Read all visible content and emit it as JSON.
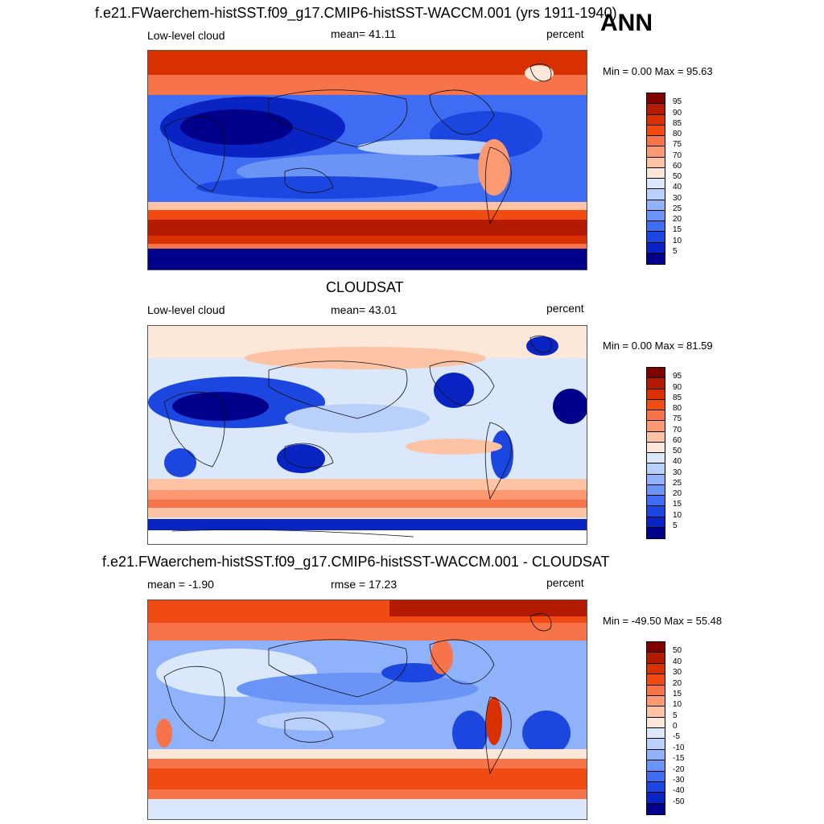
{
  "season": "ANN",
  "panels": [
    {
      "id": "model",
      "title": "f.e21.FWaerchem-histSST.f09_g17.CMIP6-histSST-WACCM.001 (yrs 1911-1940)",
      "left_label": "Low-level cloud",
      "center_label": "mean=  41.11",
      "right_label": "percent",
      "minmax": "Min =   0.00 Max =  95.63",
      "ticks": [
        "95",
        "90",
        "85",
        "80",
        "75",
        "70",
        "60",
        "50",
        "40",
        "30",
        "25",
        "20",
        "15",
        "10",
        "5"
      ],
      "colors": [
        "#7f0000",
        "#b31b00",
        "#d93000",
        "#ef4b12",
        "#f7734a",
        "#fb9a72",
        "#fdc3a4",
        "#fde7d8",
        "#dbe8fb",
        "#b9d0fb",
        "#8fb2fa",
        "#6a95f7",
        "#3e6cf2",
        "#1c46e0",
        "#0a24c4",
        "#00008a"
      ]
    },
    {
      "id": "obs",
      "title": "CLOUDSAT",
      "left_label": "Low-level cloud",
      "center_label": "mean=  43.01",
      "right_label": "percent",
      "minmax": "Min =   0.00 Max =  81.59",
      "ticks": [
        "95",
        "90",
        "85",
        "80",
        "75",
        "70",
        "60",
        "50",
        "40",
        "30",
        "25",
        "20",
        "15",
        "10",
        "5"
      ],
      "colors": [
        "#7f0000",
        "#b31b00",
        "#d93000",
        "#ef4b12",
        "#f7734a",
        "#fb9a72",
        "#fdc3a4",
        "#fde7d8",
        "#dbe8fb",
        "#b9d0fb",
        "#8fb2fa",
        "#6a95f7",
        "#3e6cf2",
        "#1c46e0",
        "#0a24c4",
        "#00008a"
      ]
    },
    {
      "id": "diff",
      "title": "f.e21.FWaerchem-histSST.f09_g17.CMIP6-histSST-WACCM.001 - CLOUDSAT",
      "left_label": "mean =  -1.90",
      "center_label": "rmse =  17.23",
      "right_label": "percent",
      "minmax": "Min = -49.50 Max =  55.48",
      "ticks": [
        "50",
        "40",
        "30",
        "20",
        "15",
        "10",
        "5",
        "0",
        "-5",
        "-10",
        "-15",
        "-20",
        "-30",
        "-40",
        "-50"
      ],
      "colors": [
        "#7f0000",
        "#b31b00",
        "#d93000",
        "#ef4b12",
        "#f7734a",
        "#fb9a72",
        "#fdc3a4",
        "#fde7d8",
        "#dbe8fb",
        "#b9d0fb",
        "#8fb2fa",
        "#6a95f7",
        "#3e6cf2",
        "#1c46e0",
        "#0a24c4",
        "#00008a"
      ]
    }
  ]
}
